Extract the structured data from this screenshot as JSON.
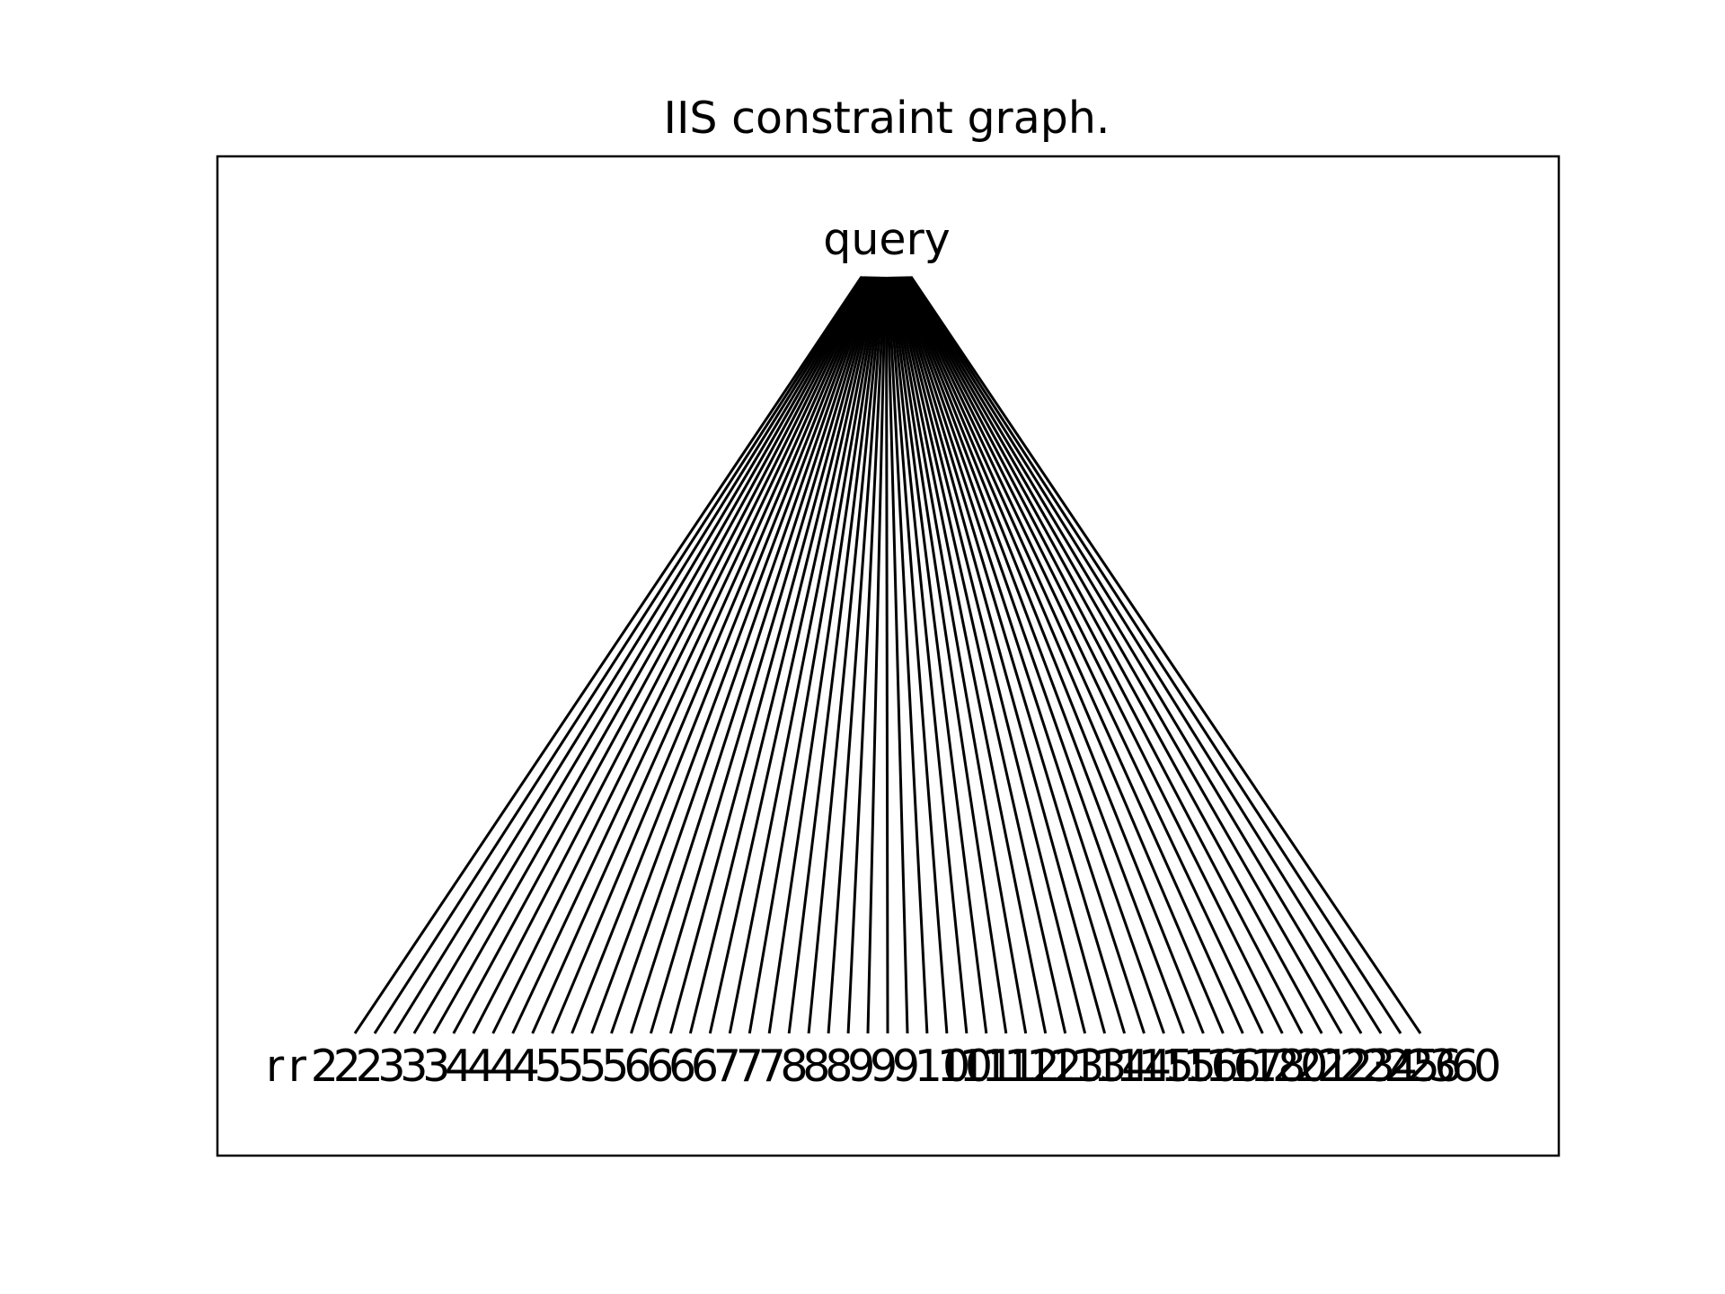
{
  "title": "IIS constraint graph.",
  "root_label": "query",
  "colors": {
    "background": "#ffffff",
    "edges": "#000000",
    "text": "#000000"
  },
  "graph": {
    "type": "tree",
    "root": "query",
    "leaf_count": 55,
    "leaf_labels_visible": [
      "r",
      "r",
      "2",
      "2",
      "2",
      "3",
      "3",
      "3",
      "4",
      "4",
      "4",
      "4",
      "5",
      "5",
      "5",
      "5",
      "6",
      "6",
      "6",
      "6",
      "7",
      "7",
      "7",
      "8",
      "8",
      "8",
      "9",
      "9",
      "9",
      "10",
      "10",
      "11",
      "11",
      "12",
      "12",
      "13",
      "13",
      "14",
      "14",
      "15",
      "15",
      "16",
      "16",
      "17",
      "18",
      "20",
      "21",
      "22",
      "23",
      "24",
      "25",
      "26",
      "3",
      "6",
      "0"
    ]
  }
}
